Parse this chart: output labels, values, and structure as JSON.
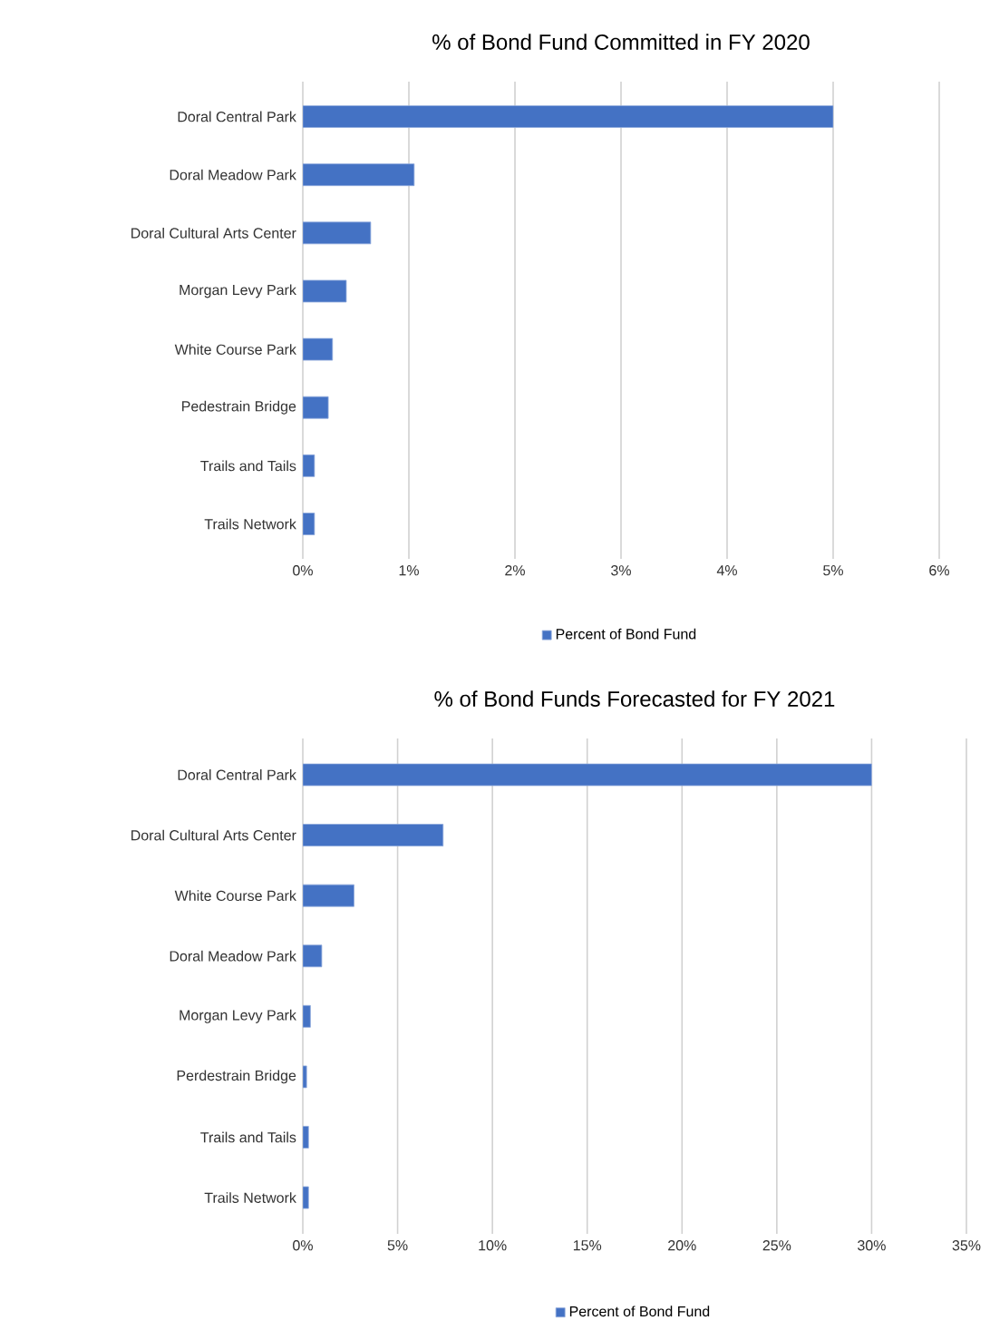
{
  "chart_data": [
    {
      "type": "bar",
      "title": "% of Bond Fund Committed in FY 2020",
      "orientation": "horizontal",
      "categories": [
        "Doral Central Park",
        "Doral Meadow Park",
        "Doral Cultural Arts Center",
        "Morgan Levy Park",
        "White Course Park",
        "Pedestrain Bridge",
        "Trails and Tails",
        "Trails Network"
      ],
      "series": [
        {
          "name": "Percent of Bond Fund",
          "color": "#4472c4",
          "values": [
            5.0,
            1.05,
            0.64,
            0.41,
            0.28,
            0.24,
            0.11,
            0.11
          ]
        }
      ],
      "xlim": [
        0,
        6
      ],
      "xticks": [
        {
          "value": 0,
          "label": "0%"
        },
        {
          "value": 1,
          "label": "1%"
        },
        {
          "value": 2,
          "label": "2%"
        },
        {
          "value": 3,
          "label": "3%"
        },
        {
          "value": 4,
          "label": "4%"
        },
        {
          "value": 5,
          "label": "5%"
        },
        {
          "value": 6,
          "label": "6%"
        }
      ],
      "grid": "x",
      "legend": "bottom"
    },
    {
      "type": "bar",
      "title": "% of Bond Funds Forecasted for FY 2021",
      "orientation": "horizontal",
      "categories": [
        "Doral Central Park",
        "Doral Cultural Arts Center",
        "White Course Park",
        "Doral Meadow Park",
        "Morgan Levy Park",
        "Perdestrain Bridge",
        "Trails and Tails",
        "Trails Network"
      ],
      "series": [
        {
          "name": "Percent of Bond Fund",
          "color": "#4472c4",
          "values": [
            30.0,
            7.4,
            2.7,
            1.0,
            0.4,
            0.2,
            0.3,
            0.3
          ]
        }
      ],
      "xlim": [
        0,
        35
      ],
      "xticks": [
        {
          "value": 0,
          "label": "0%"
        },
        {
          "value": 5,
          "label": "5%"
        },
        {
          "value": 10,
          "label": "10%"
        },
        {
          "value": 15,
          "label": "15%"
        },
        {
          "value": 20,
          "label": "20%"
        },
        {
          "value": 25,
          "label": "25%"
        },
        {
          "value": 30,
          "label": "30%"
        },
        {
          "value": 35,
          "label": "35%"
        }
      ],
      "grid": "x",
      "legend": "bottom"
    }
  ]
}
